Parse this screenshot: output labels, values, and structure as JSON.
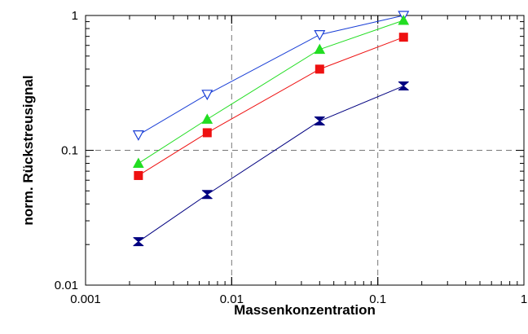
{
  "chart_data": {
    "type": "line",
    "xlabel": "Massenkonzentration",
    "ylabel": "norm. Rückstreusignal",
    "x_scale": "log",
    "y_scale": "log",
    "xlim": [
      0.001,
      1
    ],
    "ylim": [
      0.01,
      1
    ],
    "grid": true,
    "x_ticks": [
      {
        "value": 0.001,
        "label": "0.001"
      },
      {
        "value": 0.01,
        "label": "0.01"
      },
      {
        "value": 0.1,
        "label": "0.1"
      },
      {
        "value": 1,
        "label": "1"
      }
    ],
    "y_ticks": [
      {
        "value": 0.01,
        "label": "0.01"
      },
      {
        "value": 0.1,
        "label": "0.1"
      },
      {
        "value": 1,
        "label": "1"
      }
    ],
    "series": [
      {
        "marker": "triangle-down-open",
        "color": "#1a3fd6",
        "x": [
          0.0023,
          0.0068,
          0.04,
          0.15
        ],
        "y": [
          0.13,
          0.26,
          0.72,
          1.0
        ]
      },
      {
        "marker": "triangle-up",
        "color": "#22dd22",
        "x": [
          0.0023,
          0.0068,
          0.04,
          0.15
        ],
        "y": [
          0.08,
          0.17,
          0.56,
          0.92
        ]
      },
      {
        "marker": "square",
        "color": "#ee1111",
        "x": [
          0.0023,
          0.0068,
          0.04,
          0.15
        ],
        "y": [
          0.065,
          0.135,
          0.4,
          0.69
        ]
      },
      {
        "marker": "bowtie",
        "color": "#000080",
        "x": [
          0.0023,
          0.0068,
          0.04,
          0.15
        ],
        "y": [
          0.021,
          0.047,
          0.165,
          0.3
        ]
      }
    ]
  }
}
